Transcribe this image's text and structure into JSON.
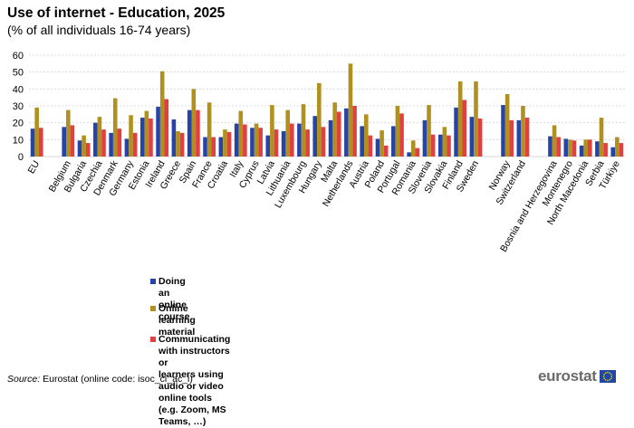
{
  "title": "Use of internet - Education, 2025",
  "subtitle": "(% of all individuals 16-74 years)",
  "chart_data": {
    "type": "bar",
    "ylim": [
      0,
      60
    ],
    "yticks": [
      0,
      10,
      20,
      30,
      40,
      50,
      60
    ],
    "grid": true,
    "categories": [
      "EU",
      "",
      "Belgium",
      "Bulgaria",
      "Czechia",
      "Denmark",
      "Germany",
      "Estonia",
      "Ireland",
      "Greece",
      "Spain",
      "France",
      "Croatia",
      "Italy",
      "Cyprus",
      "Latvia",
      "Lithuania",
      "Luxembourg",
      "Hungary",
      "Malta",
      "Netherlands",
      "Austria",
      "Poland",
      "Portugal",
      "Romania",
      "Slovenia",
      "Slovakia",
      "Finland",
      "Sweden",
      "",
      "Norway",
      "Switzerland",
      "",
      "Bosnia and Herzegovina",
      "Montenegro",
      "North Macedonia",
      "Serbia",
      "Türkiye"
    ],
    "series": [
      {
        "name": "Doing an online course",
        "color": "#2644a7",
        "values": [
          16.5,
          null,
          17.5,
          9.5,
          20,
          14,
          10.5,
          23,
          29.5,
          22,
          27.5,
          11.5,
          11.5,
          19.5,
          17,
          12.5,
          15,
          19.5,
          24,
          21.5,
          28.5,
          18,
          10.5,
          18,
          2.5,
          21.5,
          13,
          29,
          23.5,
          null,
          30.5,
          21.5,
          null,
          12,
          10.5,
          6.5,
          9,
          5.5
        ]
      },
      {
        "name": "Online learning material",
        "color": "#b09120",
        "values": [
          29,
          null,
          27.5,
          12.5,
          23.5,
          34.5,
          24.5,
          27,
          50.5,
          15,
          40,
          32,
          16,
          27,
          19.5,
          30.5,
          27.5,
          31,
          43.5,
          32,
          55,
          25,
          15.5,
          30,
          9.5,
          30.5,
          17.5,
          44.5,
          44.5,
          null,
          37,
          30,
          null,
          18.5,
          10,
          10,
          23,
          11.5
        ]
      },
      {
        "name": "Communicating with instructors or\nlearners using audio or video online tools (e.g. Zoom, MS Teams, …)",
        "color": "#e04040",
        "values": [
          17,
          null,
          18.5,
          8,
          16,
          16.5,
          14,
          22.5,
          34,
          14,
          27.5,
          11.5,
          14.5,
          19,
          17,
          16,
          19.5,
          16,
          17.5,
          26.5,
          30,
          12.5,
          6.5,
          25.5,
          5,
          13,
          12.5,
          33.5,
          22.5,
          null,
          21.5,
          23,
          null,
          11.5,
          9.5,
          10,
          8,
          8
        ]
      }
    ]
  },
  "source": {
    "label": "Source:",
    "text": " Eurostat (online code: isoc_ci_ac_i)"
  },
  "logo": {
    "text": "eurostat"
  }
}
